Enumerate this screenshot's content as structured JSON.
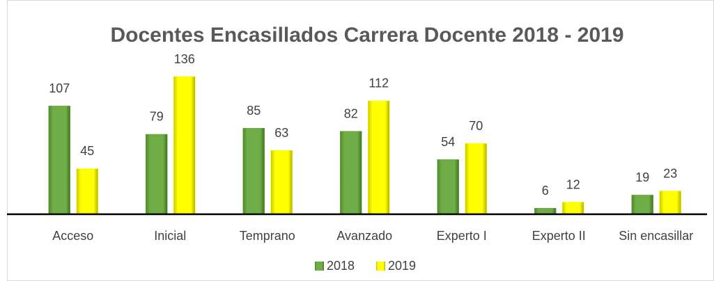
{
  "chart_data": {
    "type": "bar",
    "title": "Docentes Encasillados Carrera Docente 2018 - 2019",
    "categories": [
      "Acceso",
      "Inicial",
      "Temprano",
      "Avanzado",
      "Experto I",
      "Experto II",
      "Sin encasillar"
    ],
    "series": [
      {
        "name": "2018",
        "color": "#70ad47",
        "values": [
          107,
          79,
          85,
          82,
          54,
          6,
          19
        ]
      },
      {
        "name": "2019",
        "color": "#ffff00",
        "values": [
          45,
          136,
          63,
          112,
          70,
          12,
          23
        ]
      }
    ],
    "legend": "bottom"
  }
}
